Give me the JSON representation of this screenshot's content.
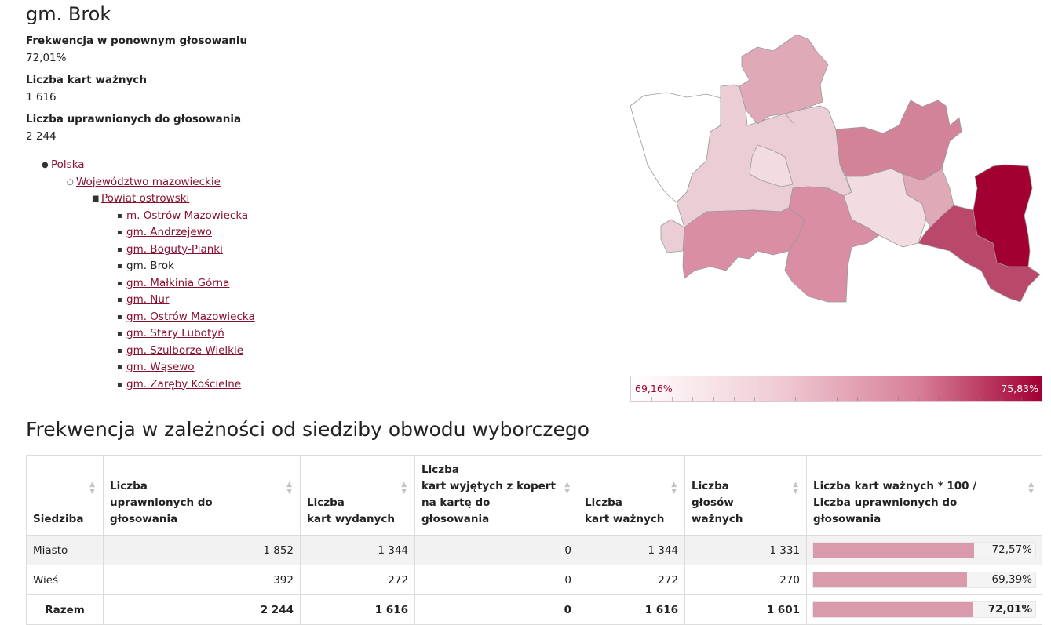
{
  "page": {
    "title": "gm. Brok"
  },
  "stats": [
    {
      "label": "Frekwencja w ponownym głosowaniu",
      "value": "72,01%"
    },
    {
      "label": "Liczba kart ważnych",
      "value": "1 616"
    },
    {
      "label": "Liczba uprawnionych do głosowania",
      "value": "2 244"
    }
  ],
  "breadcrumb": {
    "country": "Polska",
    "voivodeship": "Województwo mazowieckie",
    "county": "Powiat ostrowski",
    "municipalities": [
      {
        "label": "m. Ostrów Mazowiecka",
        "link": true
      },
      {
        "label": "gm. Andrzejewo",
        "link": true
      },
      {
        "label": "gm. Boguty-Pianki",
        "link": true
      },
      {
        "label": "gm. Brok",
        "link": false
      },
      {
        "label": "gm. Małkinia Górna",
        "link": true
      },
      {
        "label": "gm. Nur",
        "link": true
      },
      {
        "label": "gm. Ostrów Mazowiecka",
        "link": true
      },
      {
        "label": "gm. Stary Lubotyń",
        "link": true
      },
      {
        "label": "gm. Szulborze Wielkie",
        "link": true
      },
      {
        "label": "gm. Wąsewo",
        "link": true
      },
      {
        "label": "gm. Zaręby Kościelne",
        "link": true
      }
    ]
  },
  "map": {
    "colors": {
      "white": "#ffffff",
      "very_light": "#f2dce2",
      "light": "#ebcdd5",
      "light_medium": "#e0a9b8",
      "medium": "#d98ea3",
      "medium_dark": "#d28398",
      "dark": "#b9486a",
      "darkest": "#a20030",
      "border": "#9a9a9a"
    }
  },
  "legend": {
    "min_label": "69,16%",
    "max_label": "75,83%"
  },
  "section": {
    "title": "Frekwencja w zależności od siedziby obwodu wyborczego"
  },
  "table": {
    "headers": [
      {
        "line1": "",
        "line2": "",
        "line3": "Siedziba"
      },
      {
        "line1": "",
        "line2": "Liczba",
        "line3": "uprawnionych do głosowania"
      },
      {
        "line1": "",
        "line2": "Liczba",
        "line3": "kart wydanych"
      },
      {
        "line1": "Liczba",
        "line2": "kart wyjętych z kopert",
        "line3": "na kartę do głosowania"
      },
      {
        "line1": "",
        "line2": "Liczba",
        "line3": "kart ważnych"
      },
      {
        "line1": "",
        "line2": "Liczba",
        "line3": "głosów ważnych"
      },
      {
        "line1": "",
        "line2": "Liczba kart ważnych * 100 /",
        "line3": "Liczba uprawnionych do głosowania"
      }
    ],
    "rows": [
      {
        "name": "Miasto",
        "eligible": "1 852",
        "issued": "1 344",
        "taken": "0",
        "valid_cards": "1 344",
        "valid_votes": "1 331",
        "pct_label": "72,57%",
        "pct": 72.57
      },
      {
        "name": "Wieś",
        "eligible": "392",
        "issued": "272",
        "taken": "0",
        "valid_cards": "272",
        "valid_votes": "270",
        "pct_label": "69,39%",
        "pct": 69.39
      },
      {
        "name": "Razem",
        "eligible": "2 244",
        "issued": "1 616",
        "taken": "0",
        "valid_cards": "1 616",
        "valid_votes": "1 601",
        "pct_label": "72,01%",
        "pct": 72.01
      }
    ]
  },
  "icons": {
    "sort": "sort-arrows-icon",
    "bullet_disc": "bullet-disc-icon",
    "bullet_circle": "bullet-circle-icon",
    "bullet_square": "bullet-square-icon"
  }
}
